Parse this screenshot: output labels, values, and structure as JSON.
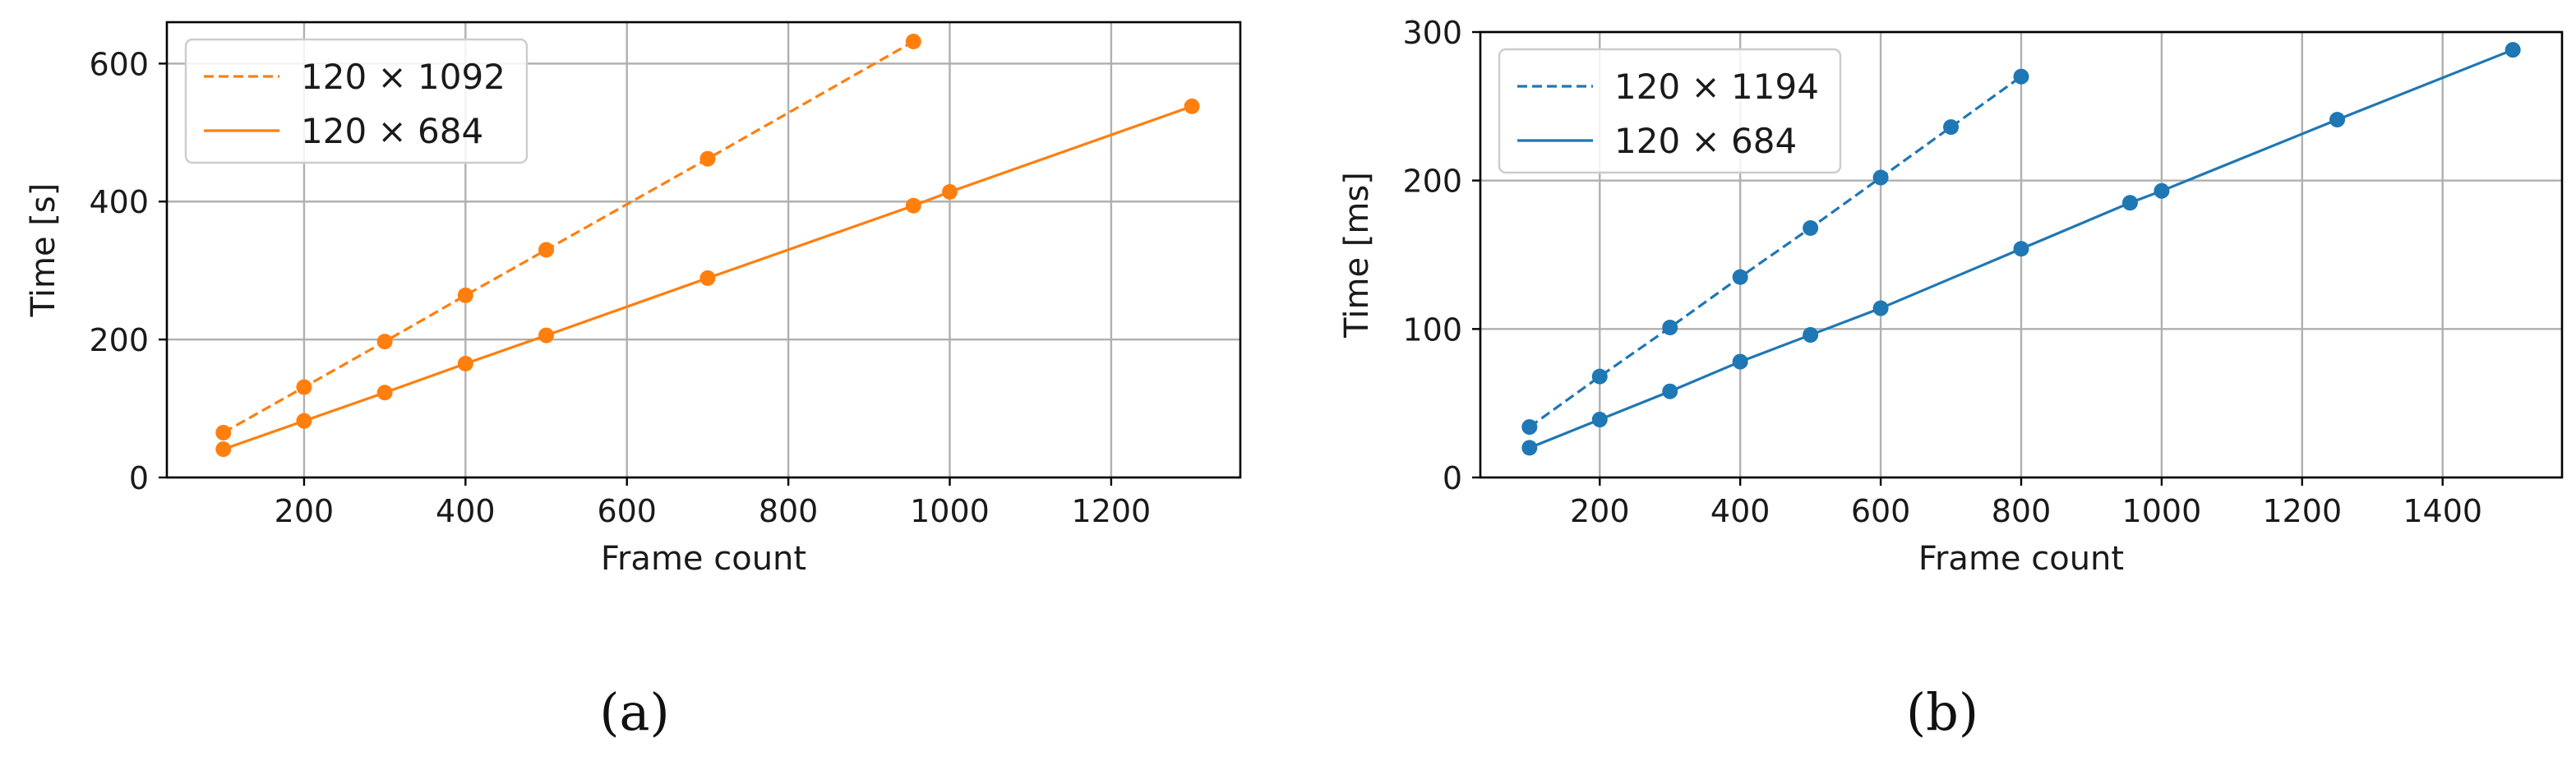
{
  "chart_data": [
    {
      "type": "line",
      "caption": "(a)",
      "xlabel": "Frame count",
      "ylabel": "Time [s]",
      "xlim": [
        30,
        1360
      ],
      "ylim": [
        0,
        660
      ],
      "xticks": [
        200,
        400,
        600,
        800,
        1000,
        1200
      ],
      "yticks": [
        0,
        200,
        400,
        600
      ],
      "grid": true,
      "legend_position": "top-left",
      "color": "#ff7f0e",
      "series": [
        {
          "name": "120 × 1092",
          "style": "dashed",
          "x": [
            100,
            200,
            300,
            400,
            500,
            700,
            955
          ],
          "y": [
            65,
            131,
            197,
            264,
            330,
            462,
            632
          ]
        },
        {
          "name": "120 × 684",
          "style": "solid",
          "x": [
            100,
            200,
            300,
            400,
            500,
            700,
            955,
            1000,
            1300
          ],
          "y": [
            41,
            82,
            123,
            165,
            206,
            289,
            394,
            414,
            538
          ]
        }
      ]
    },
    {
      "type": "line",
      "caption": "(b)",
      "xlabel": "Frame count",
      "ylabel": "Time [ms]",
      "xlim": [
        30,
        1570
      ],
      "ylim": [
        0,
        300
      ],
      "xticks": [
        200,
        400,
        600,
        800,
        1000,
        1200,
        1400
      ],
      "yticks": [
        0,
        100,
        200,
        300
      ],
      "grid": true,
      "legend_position": "top-left",
      "color": "#1f77b4",
      "series": [
        {
          "name": "120 × 1194",
          "style": "dashed",
          "x": [
            100,
            200,
            300,
            400,
            500,
            600,
            700,
            800
          ],
          "y": [
            34,
            68,
            101,
            135,
            168,
            202,
            236,
            270
          ]
        },
        {
          "name": "120 × 684",
          "style": "solid",
          "x": [
            100,
            200,
            300,
            400,
            500,
            600,
            800,
            955,
            1000,
            1250,
            1500
          ],
          "y": [
            20,
            39,
            58,
            78,
            96,
            114,
            154,
            185,
            193,
            241,
            288
          ]
        }
      ]
    }
  ]
}
